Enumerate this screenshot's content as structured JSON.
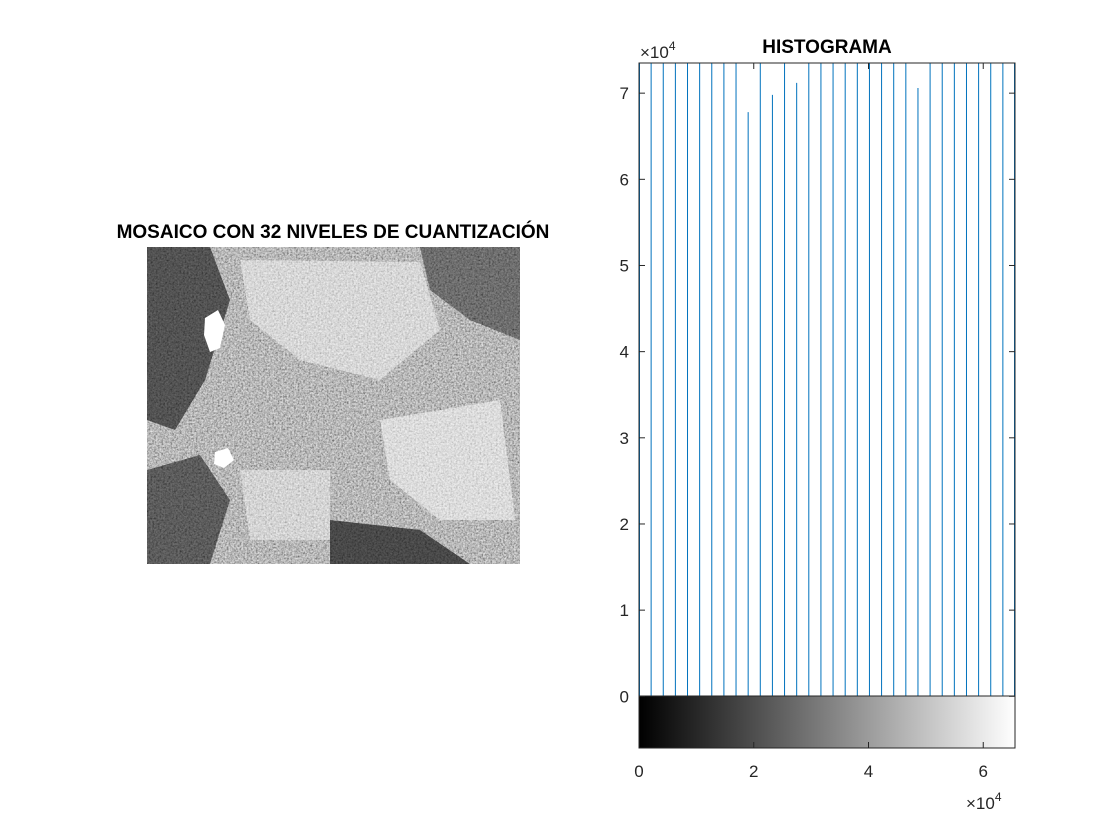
{
  "image_panel": {
    "title": "MOSAICO CON 32 NIVELES DE CUANTIZACIÓN"
  },
  "chart_data": {
    "type": "bar",
    "title": "HISTOGRAMA",
    "xlabel": "",
    "ylabel": "",
    "x_multiplier": "×10",
    "x_exponent": "4",
    "y_multiplier": "×10",
    "y_exponent": "4",
    "xlim": [
      0,
      65535
    ],
    "ylim": [
      -6000,
      73500
    ],
    "x_ticks": [
      0,
      20000,
      40000,
      60000
    ],
    "x_tick_labels": [
      "0",
      "2",
      "4",
      "6"
    ],
    "y_ticks": [
      0,
      10000,
      20000,
      30000,
      40000,
      50000,
      60000,
      70000
    ],
    "y_tick_labels": [
      "0",
      "1",
      "2",
      "3",
      "4",
      "5",
      "6",
      "7"
    ],
    "bar_color": "#0072bd",
    "x": [
      0,
      2114,
      4228,
      6342,
      8456,
      10570,
      12684,
      14798,
      16912,
      19026,
      21140,
      23254,
      25368,
      27482,
      29596,
      31710,
      33824,
      35938,
      38052,
      40166,
      42280,
      44394,
      46508,
      48622,
      50736,
      52850,
      54964,
      57078,
      59192,
      61306,
      63420,
      65534
    ],
    "values": [
      73500,
      73500,
      73500,
      73500,
      73500,
      73500,
      73500,
      73500,
      73500,
      67800,
      73500,
      69800,
      73500,
      71200,
      73500,
      73500,
      73500,
      73500,
      73500,
      73500,
      73500,
      73500,
      73500,
      70600,
      73500,
      73500,
      73500,
      73500,
      73500,
      73500,
      73500,
      73500
    ],
    "colorbar": {
      "from": "#000000",
      "to": "#ffffff"
    }
  }
}
